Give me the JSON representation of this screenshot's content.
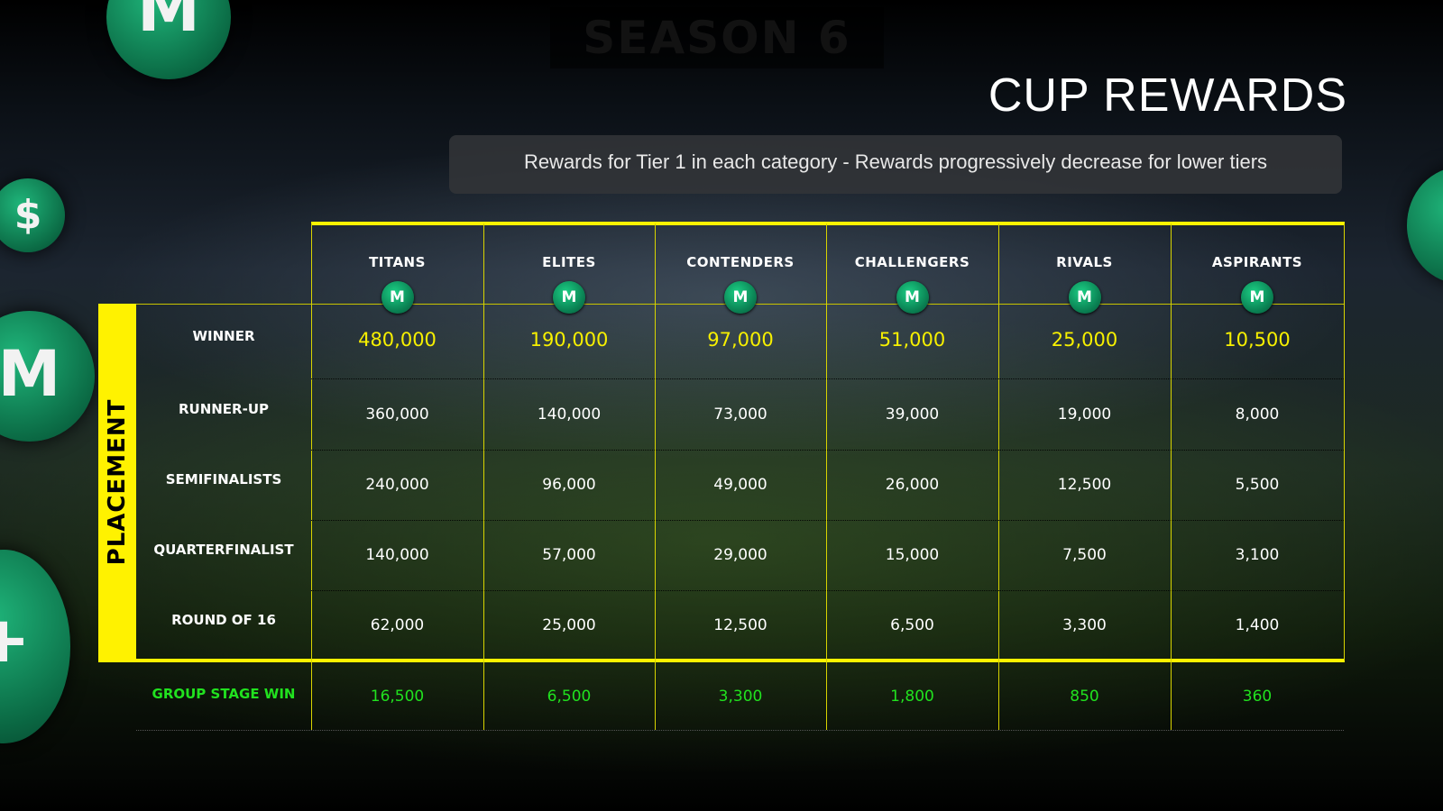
{
  "header": {
    "season": "SEASON 6",
    "title": "CUP REWARDS",
    "subtitle": "Rewards for Tier 1 in each category - Rewards progressively decrease for lower tiers"
  },
  "colors": {
    "accent_yellow": "#fff200",
    "winner_text": "#f7f000",
    "group_stage_text": "#21e21f",
    "coin_green": "#0a8052"
  },
  "table": {
    "side_label": "PLACEMENT",
    "currency_icon": "m-coin-icon",
    "columns": [
      "TITANS",
      "ELITES",
      "CONTENDERS",
      "CHALLENGERS",
      "RIVALS",
      "ASPIRANTS"
    ],
    "rows": [
      {
        "label": "WINNER",
        "values": [
          "480,000",
          "190,000",
          "97,000",
          "51,000",
          "25,000",
          "10,500"
        ]
      },
      {
        "label": "RUNNER-UP",
        "values": [
          "360,000",
          "140,000",
          "73,000",
          "39,000",
          "19,000",
          "8,000"
        ]
      },
      {
        "label": "SEMIFINALISTS",
        "values": [
          "240,000",
          "96,000",
          "49,000",
          "26,000",
          "12,500",
          "5,500"
        ]
      },
      {
        "label": "QUARTERFINALIST",
        "values": [
          "140,000",
          "57,000",
          "29,000",
          "15,000",
          "7,500",
          "3,100"
        ]
      },
      {
        "label": "ROUND OF 16",
        "values": [
          "62,000",
          "25,000",
          "12,500",
          "6,500",
          "3,300",
          "1,400"
        ]
      }
    ],
    "group_stage": {
      "label": "GROUP STAGE WIN",
      "values": [
        "16,500",
        "6,500",
        "3,300",
        "1,800",
        "850",
        "360"
      ]
    }
  }
}
